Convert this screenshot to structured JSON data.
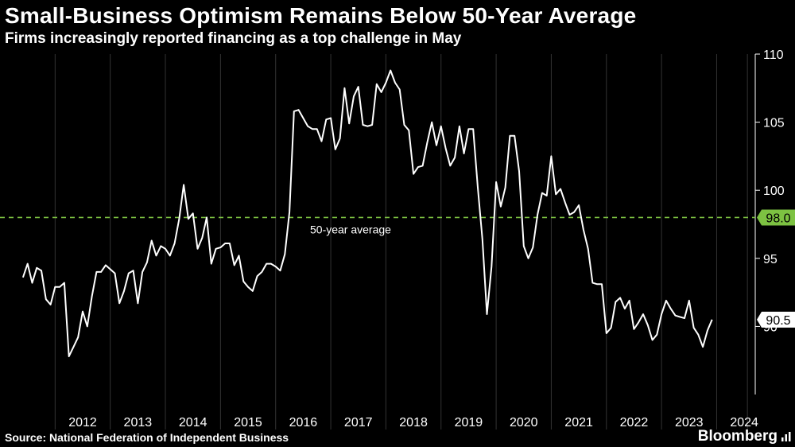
{
  "title": "Small-Business Optimism Remains Below 50-Year Average",
  "subtitle": "Firms increasingly reported financing as a top challenge in May",
  "source": "Source: National Federation of Independent Business",
  "brand": "Bloomberg",
  "colors": {
    "background": "#000000",
    "line": "#ffffff",
    "average": "#7dc242",
    "grid": "#333333"
  },
  "icons": {
    "brand": "bar-chart-icon"
  },
  "chart_data": {
    "type": "line",
    "title": "Small-Business Optimism Remains Below 50-Year Average",
    "subtitle": "Firms increasingly reported financing as a top challenge in May",
    "xlabel": "",
    "ylabel": "",
    "ylim": [
      85,
      110
    ],
    "xlim": [
      2011.0,
      2024.7
    ],
    "y_ticks": [
      90,
      95,
      100,
      105,
      110
    ],
    "y_tick_labels": [
      "90",
      "95",
      "100",
      "105",
      "110"
    ],
    "x_ticks": [
      2012,
      2013,
      2014,
      2015,
      2016,
      2017,
      2018,
      2019,
      2020,
      2021,
      2022,
      2023,
      2024
    ],
    "x_tick_labels": [
      "2012",
      "2013",
      "2014",
      "2015",
      "2016",
      "2017",
      "2018",
      "2019",
      "2020",
      "2021",
      "2022",
      "2023",
      "2024"
    ],
    "grid": "vertical",
    "axis_side": "right",
    "reference_line": {
      "value": 98.0,
      "label": "50-year average",
      "value_label": "98.0",
      "style": "dashed"
    },
    "last_value_label": "90.5",
    "series": [
      {
        "x_start": "2011-06",
        "frequency": "monthly",
        "values": [
          93.6,
          94.6,
          93.2,
          94.3,
          94.1,
          92.0,
          91.6,
          92.9,
          92.9,
          93.2,
          87.8,
          88.5,
          89.2,
          91.1,
          90.0,
          92.2,
          94.0,
          94.0,
          94.5,
          94.2,
          93.9,
          91.7,
          92.6,
          93.9,
          94.1,
          91.7,
          94.0,
          94.7,
          96.3,
          95.2,
          95.9,
          95.7,
          95.2,
          96.1,
          97.9,
          100.4,
          97.9,
          98.3,
          95.7,
          96.5,
          98.0,
          94.6,
          95.7,
          95.8,
          96.1,
          96.1,
          94.5,
          95.2,
          93.3,
          92.9,
          92.6,
          93.7,
          94.0,
          94.6,
          94.6,
          94.4,
          94.1,
          95.3,
          98.4,
          105.8,
          105.9,
          105.3,
          104.7,
          104.5,
          104.5,
          103.6,
          105.2,
          105.3,
          103.0,
          103.8,
          107.5,
          104.9,
          106.9,
          107.6,
          104.8,
          104.7,
          104.8,
          107.8,
          107.2,
          107.9,
          108.8,
          107.9,
          107.4,
          104.8,
          104.4,
          101.2,
          101.7,
          101.8,
          103.5,
          105.0,
          103.3,
          104.7,
          103.1,
          101.8,
          102.4,
          104.7,
          102.7,
          104.5,
          104.5,
          100.2,
          96.4,
          90.9,
          94.4,
          100.6,
          98.8,
          100.2,
          104.0,
          104.0,
          101.4,
          95.9,
          95.0,
          95.8,
          98.2,
          99.8,
          99.6,
          102.5,
          99.7,
          100.1,
          99.1,
          98.2,
          98.4,
          98.9,
          97.1,
          95.7,
          93.2,
          93.1,
          93.1,
          89.5,
          89.9,
          91.8,
          92.1,
          91.3,
          91.9,
          89.8,
          90.3,
          90.9,
          90.1,
          89.0,
          89.4,
          90.9,
          91.9,
          91.3,
          90.8,
          90.7,
          90.6,
          91.9,
          89.9,
          89.4,
          88.5,
          89.7,
          90.5
        ]
      }
    ]
  }
}
